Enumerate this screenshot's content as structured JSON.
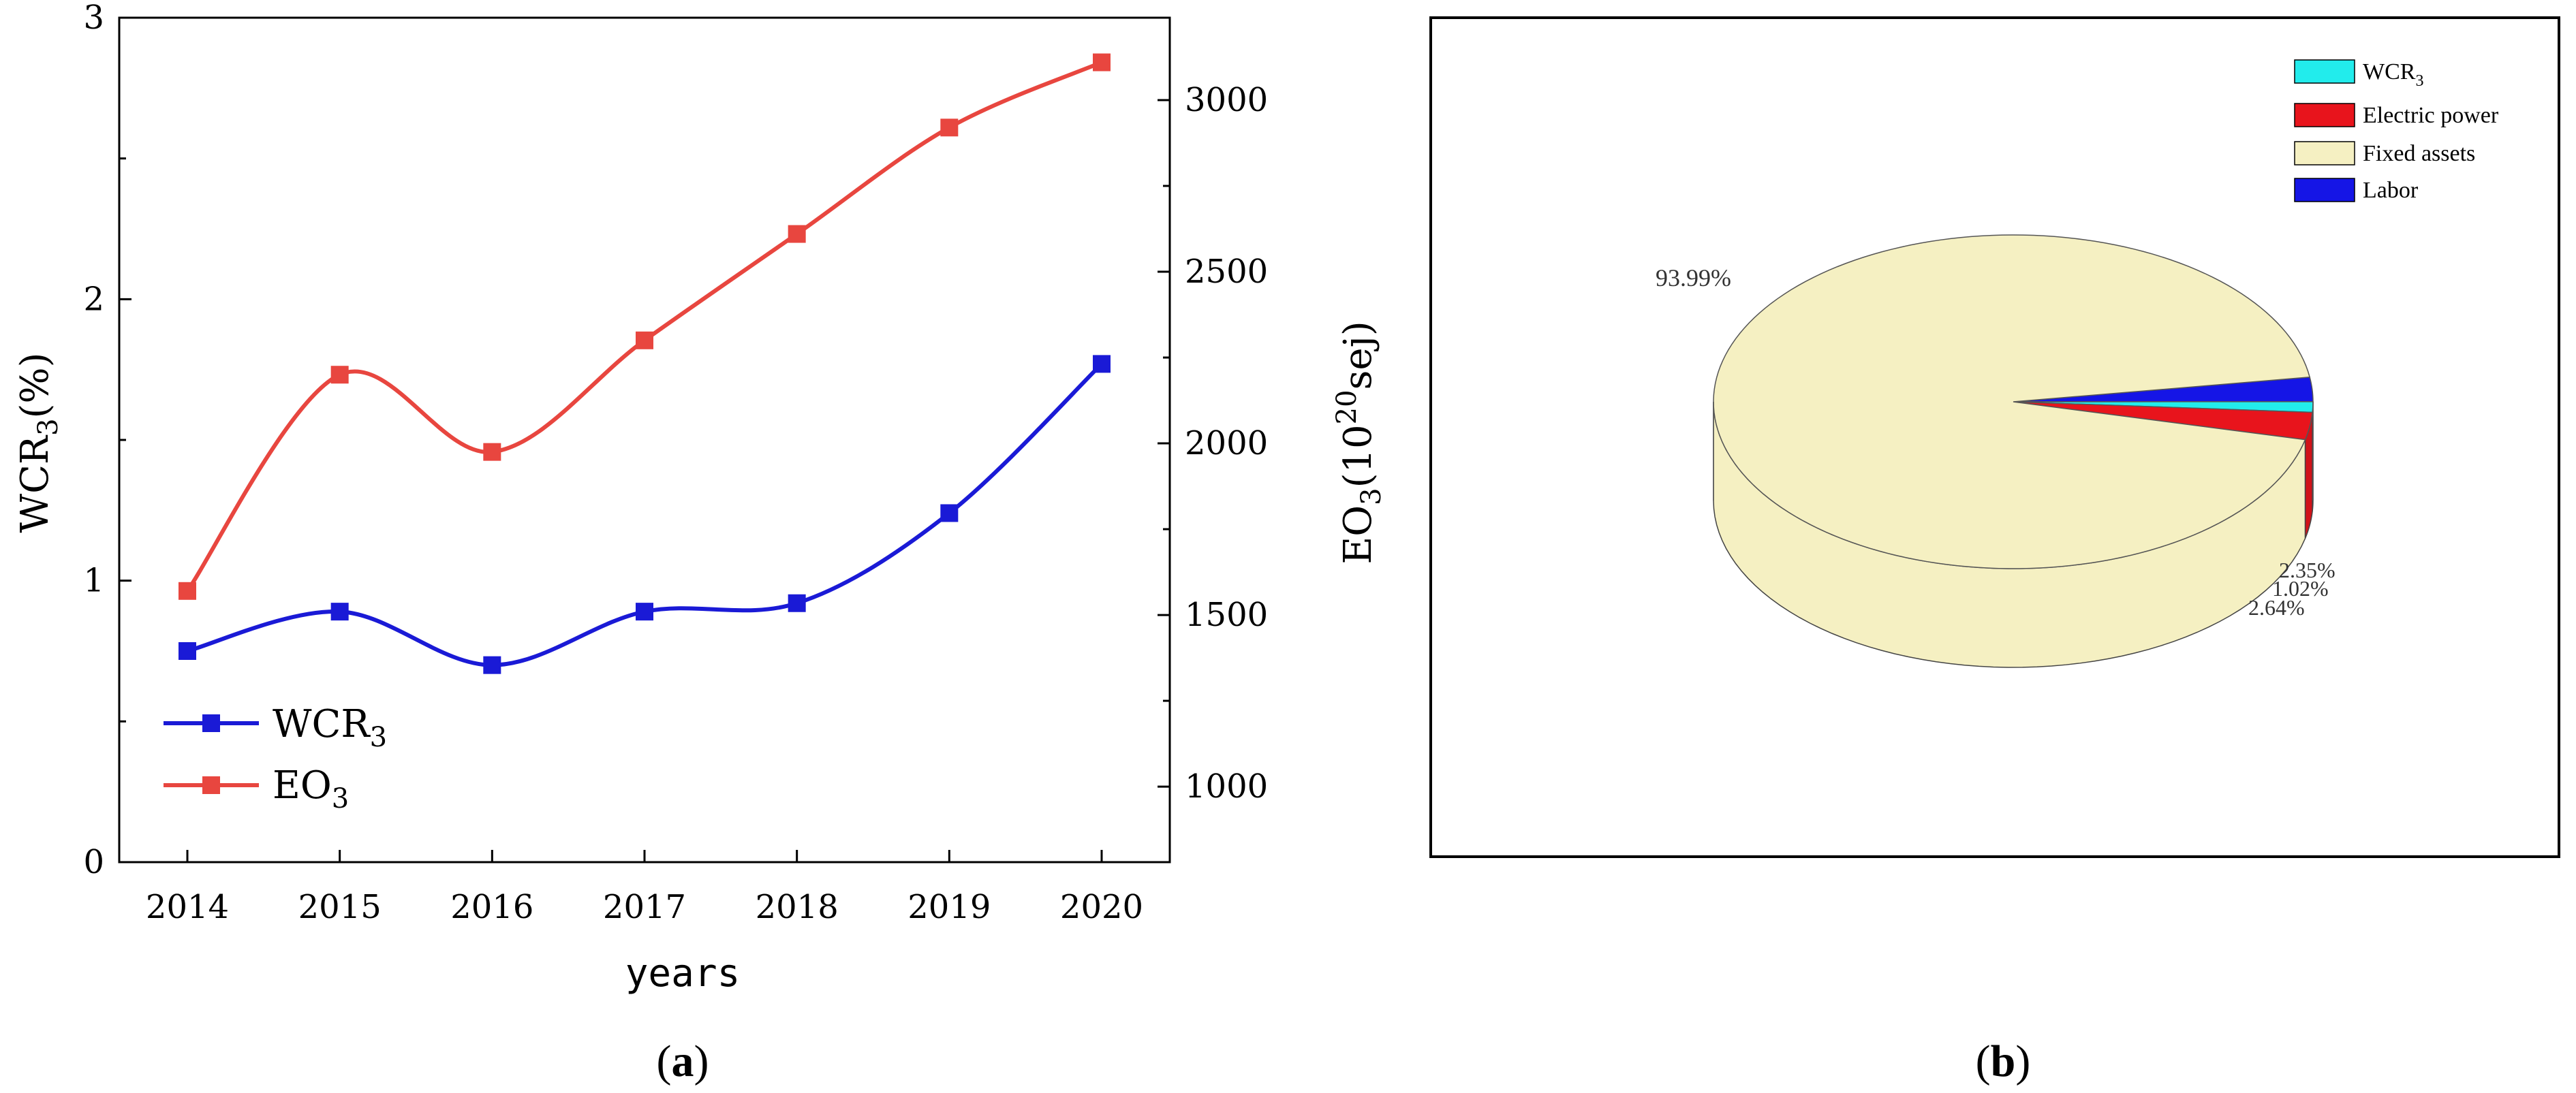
{
  "chart_data": [
    {
      "type": "line",
      "panel": "(a)",
      "panel_label": {
        "open": "(",
        "letter": "a",
        "close": ")"
      },
      "x": [
        "2014",
        "2015",
        "2016",
        "2017",
        "2018",
        "2019",
        "2020"
      ],
      "xlabel": "years",
      "ylabel_left": {
        "main": "WCR",
        "sub": "3",
        "suffix": "(%)"
      },
      "ylabel_right": {
        "main": "EO",
        "sub": "3",
        "mid": "(10",
        "sup": "20",
        "suffix": "sej)"
      },
      "ylim_left": [
        0,
        3
      ],
      "yticks_left": [
        0,
        1,
        2,
        3
      ],
      "ylim_right": [
        780,
        3240
      ],
      "yticks_right": [
        1000,
        1500,
        2000,
        2500,
        3000
      ],
      "series": [
        {
          "name": "WCR",
          "name_sub": "3",
          "axis": "left",
          "color": "#1a1ad6",
          "values": [
            0.75,
            0.89,
            0.7,
            0.89,
            0.92,
            1.24,
            1.77
          ]
        },
        {
          "name": "EO",
          "name_sub": "3",
          "axis": "right",
          "color": "#e8463f",
          "values": [
            1570,
            2200,
            1975,
            2300,
            2610,
            2920,
            3110
          ]
        }
      ],
      "legend_position": "lower-left",
      "grid": false
    },
    {
      "type": "pie",
      "panel": "(b)",
      "panel_label": {
        "open": "(",
        "letter": "b",
        "close": ")"
      },
      "style": "3d",
      "slices": [
        {
          "label": "WCR",
          "label_sub": "3",
          "value": 1.02,
          "text": "1.02%",
          "color": "#22ecec"
        },
        {
          "label": "Electric power",
          "label_sub": "",
          "value": 2.64,
          "text": "2.64%",
          "color": "#e8141c"
        },
        {
          "label": "Fixed assets",
          "label_sub": "",
          "value": 93.99,
          "text": "93.99%",
          "color": "#f5f0c2"
        },
        {
          "label": "Labor",
          "label_sub": "",
          "value": 2.35,
          "text": "2.35%",
          "color": "#1515e6"
        }
      ],
      "legend_position": "top-right"
    }
  ]
}
